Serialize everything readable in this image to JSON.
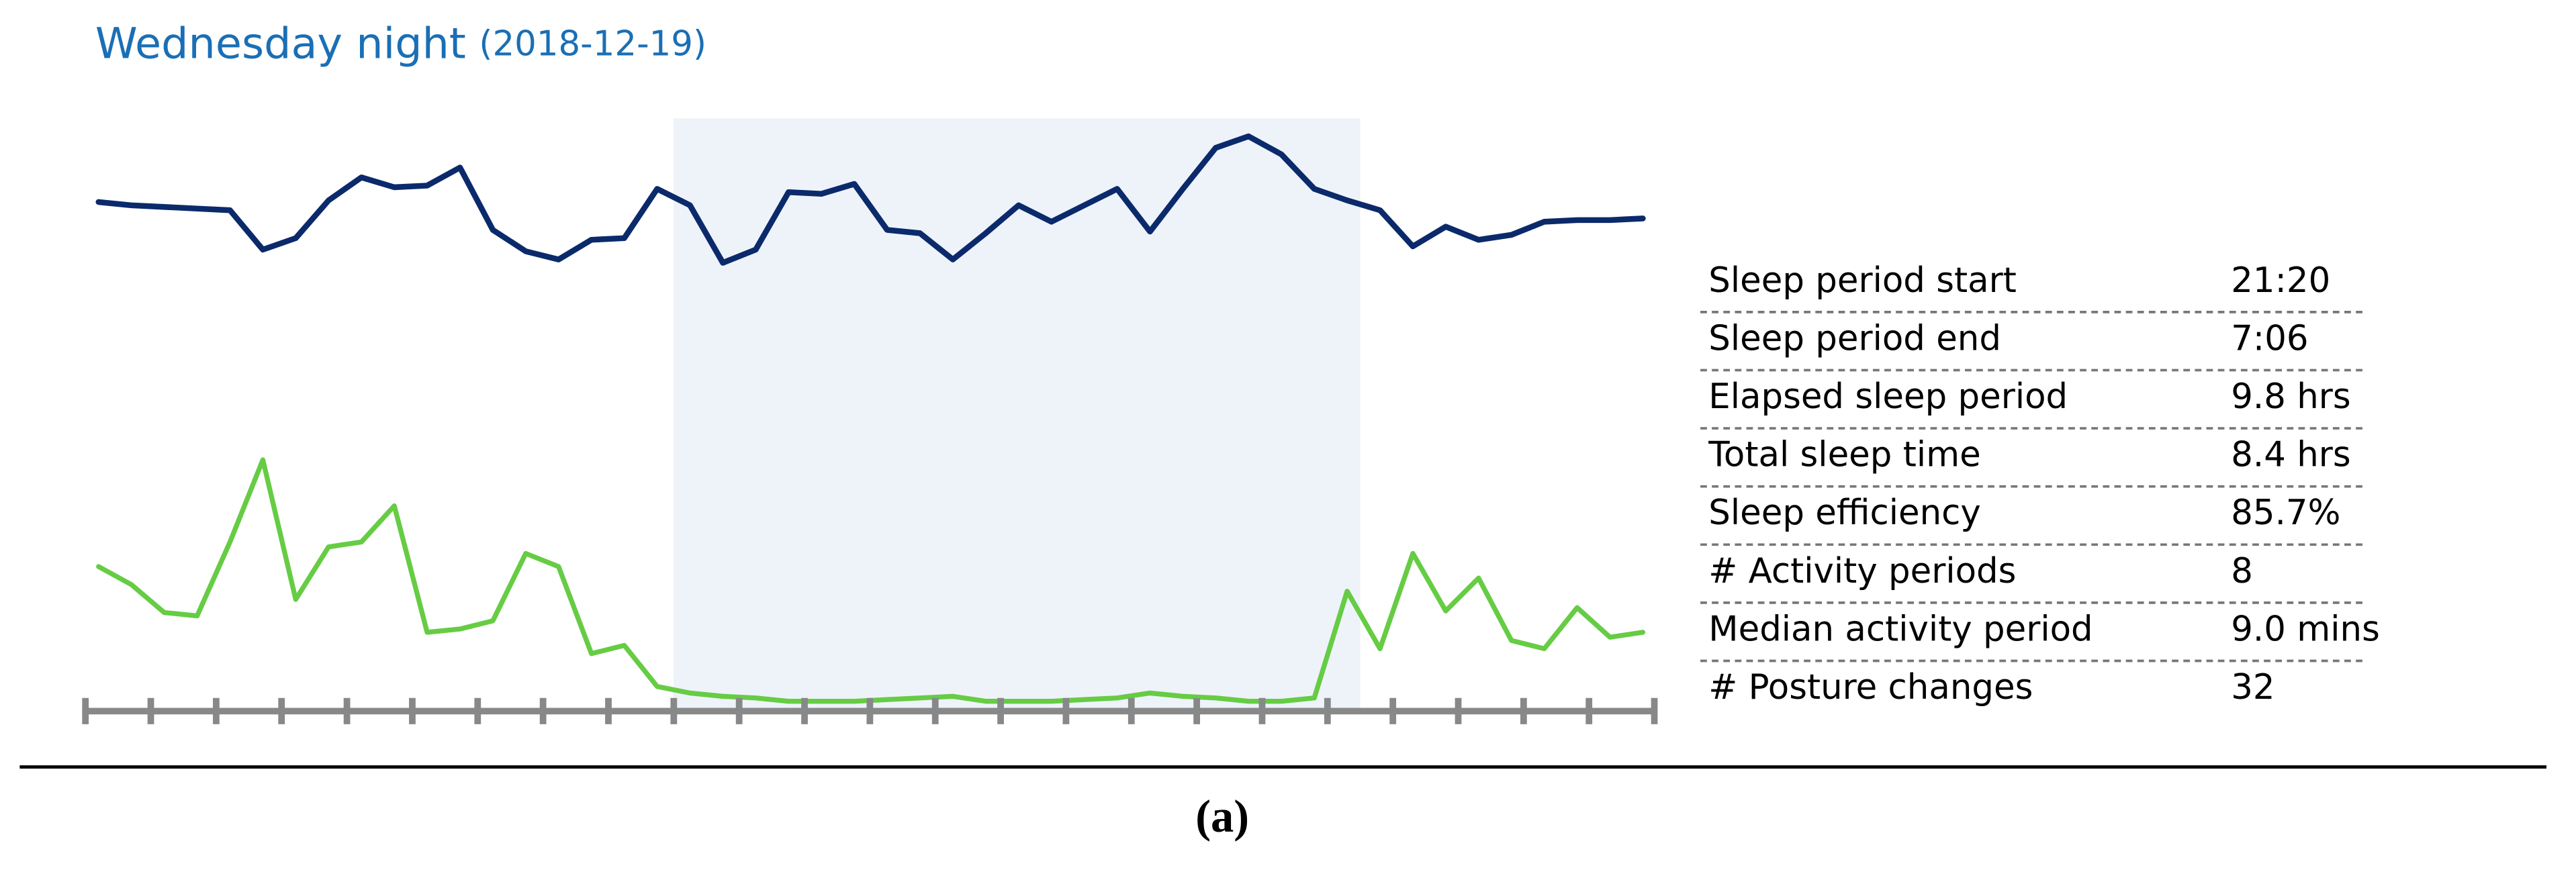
{
  "header": {
    "title": "Wednesday night",
    "date": "(2018-12-19)"
  },
  "chart_data": {
    "type": "line",
    "series": [
      {
        "color": "#0b2a6b",
        "values": [
          317,
          315,
          314,
          313,
          312,
          288,
          295,
          318,
          332,
          326,
          327,
          338,
          300,
          287,
          282,
          294,
          295,
          325,
          315,
          280,
          288,
          323,
          322,
          328,
          300,
          298,
          282,
          298,
          315,
          305,
          315,
          325,
          299,
          325,
          350,
          357,
          346,
          325,
          318,
          312,
          290,
          302,
          294,
          297,
          305,
          306,
          306,
          307
        ]
      },
      {
        "color": "#66cc44",
        "values": [
          95,
          84,
          67,
          65,
          110,
          160,
          75,
          107,
          110,
          132,
          55,
          57,
          62,
          103,
          95,
          42,
          47,
          22,
          18,
          16,
          15,
          13,
          13,
          13,
          14,
          15,
          16,
          13,
          13,
          13,
          14,
          15,
          18,
          16,
          15,
          13,
          13,
          15,
          80,
          45,
          103,
          68,
          88,
          50,
          45,
          70,
          52,
          55
        ]
      }
    ]
  },
  "table": {
    "rows": [
      [
        "Sleep period start",
        "21:20"
      ],
      [
        "Sleep period end",
        "7:06"
      ],
      [
        "Elapsed sleep period",
        "9.8 hrs"
      ],
      [
        "Total sleep time",
        "8.4 hrs"
      ],
      [
        "Sleep efficiency",
        "85.7%"
      ],
      [
        "# Activity periods",
        "8"
      ],
      [
        "Median activity period",
        "9.0 mins"
      ],
      [
        "# Posture changes",
        "32"
      ]
    ]
  },
  "caption": "(a)"
}
